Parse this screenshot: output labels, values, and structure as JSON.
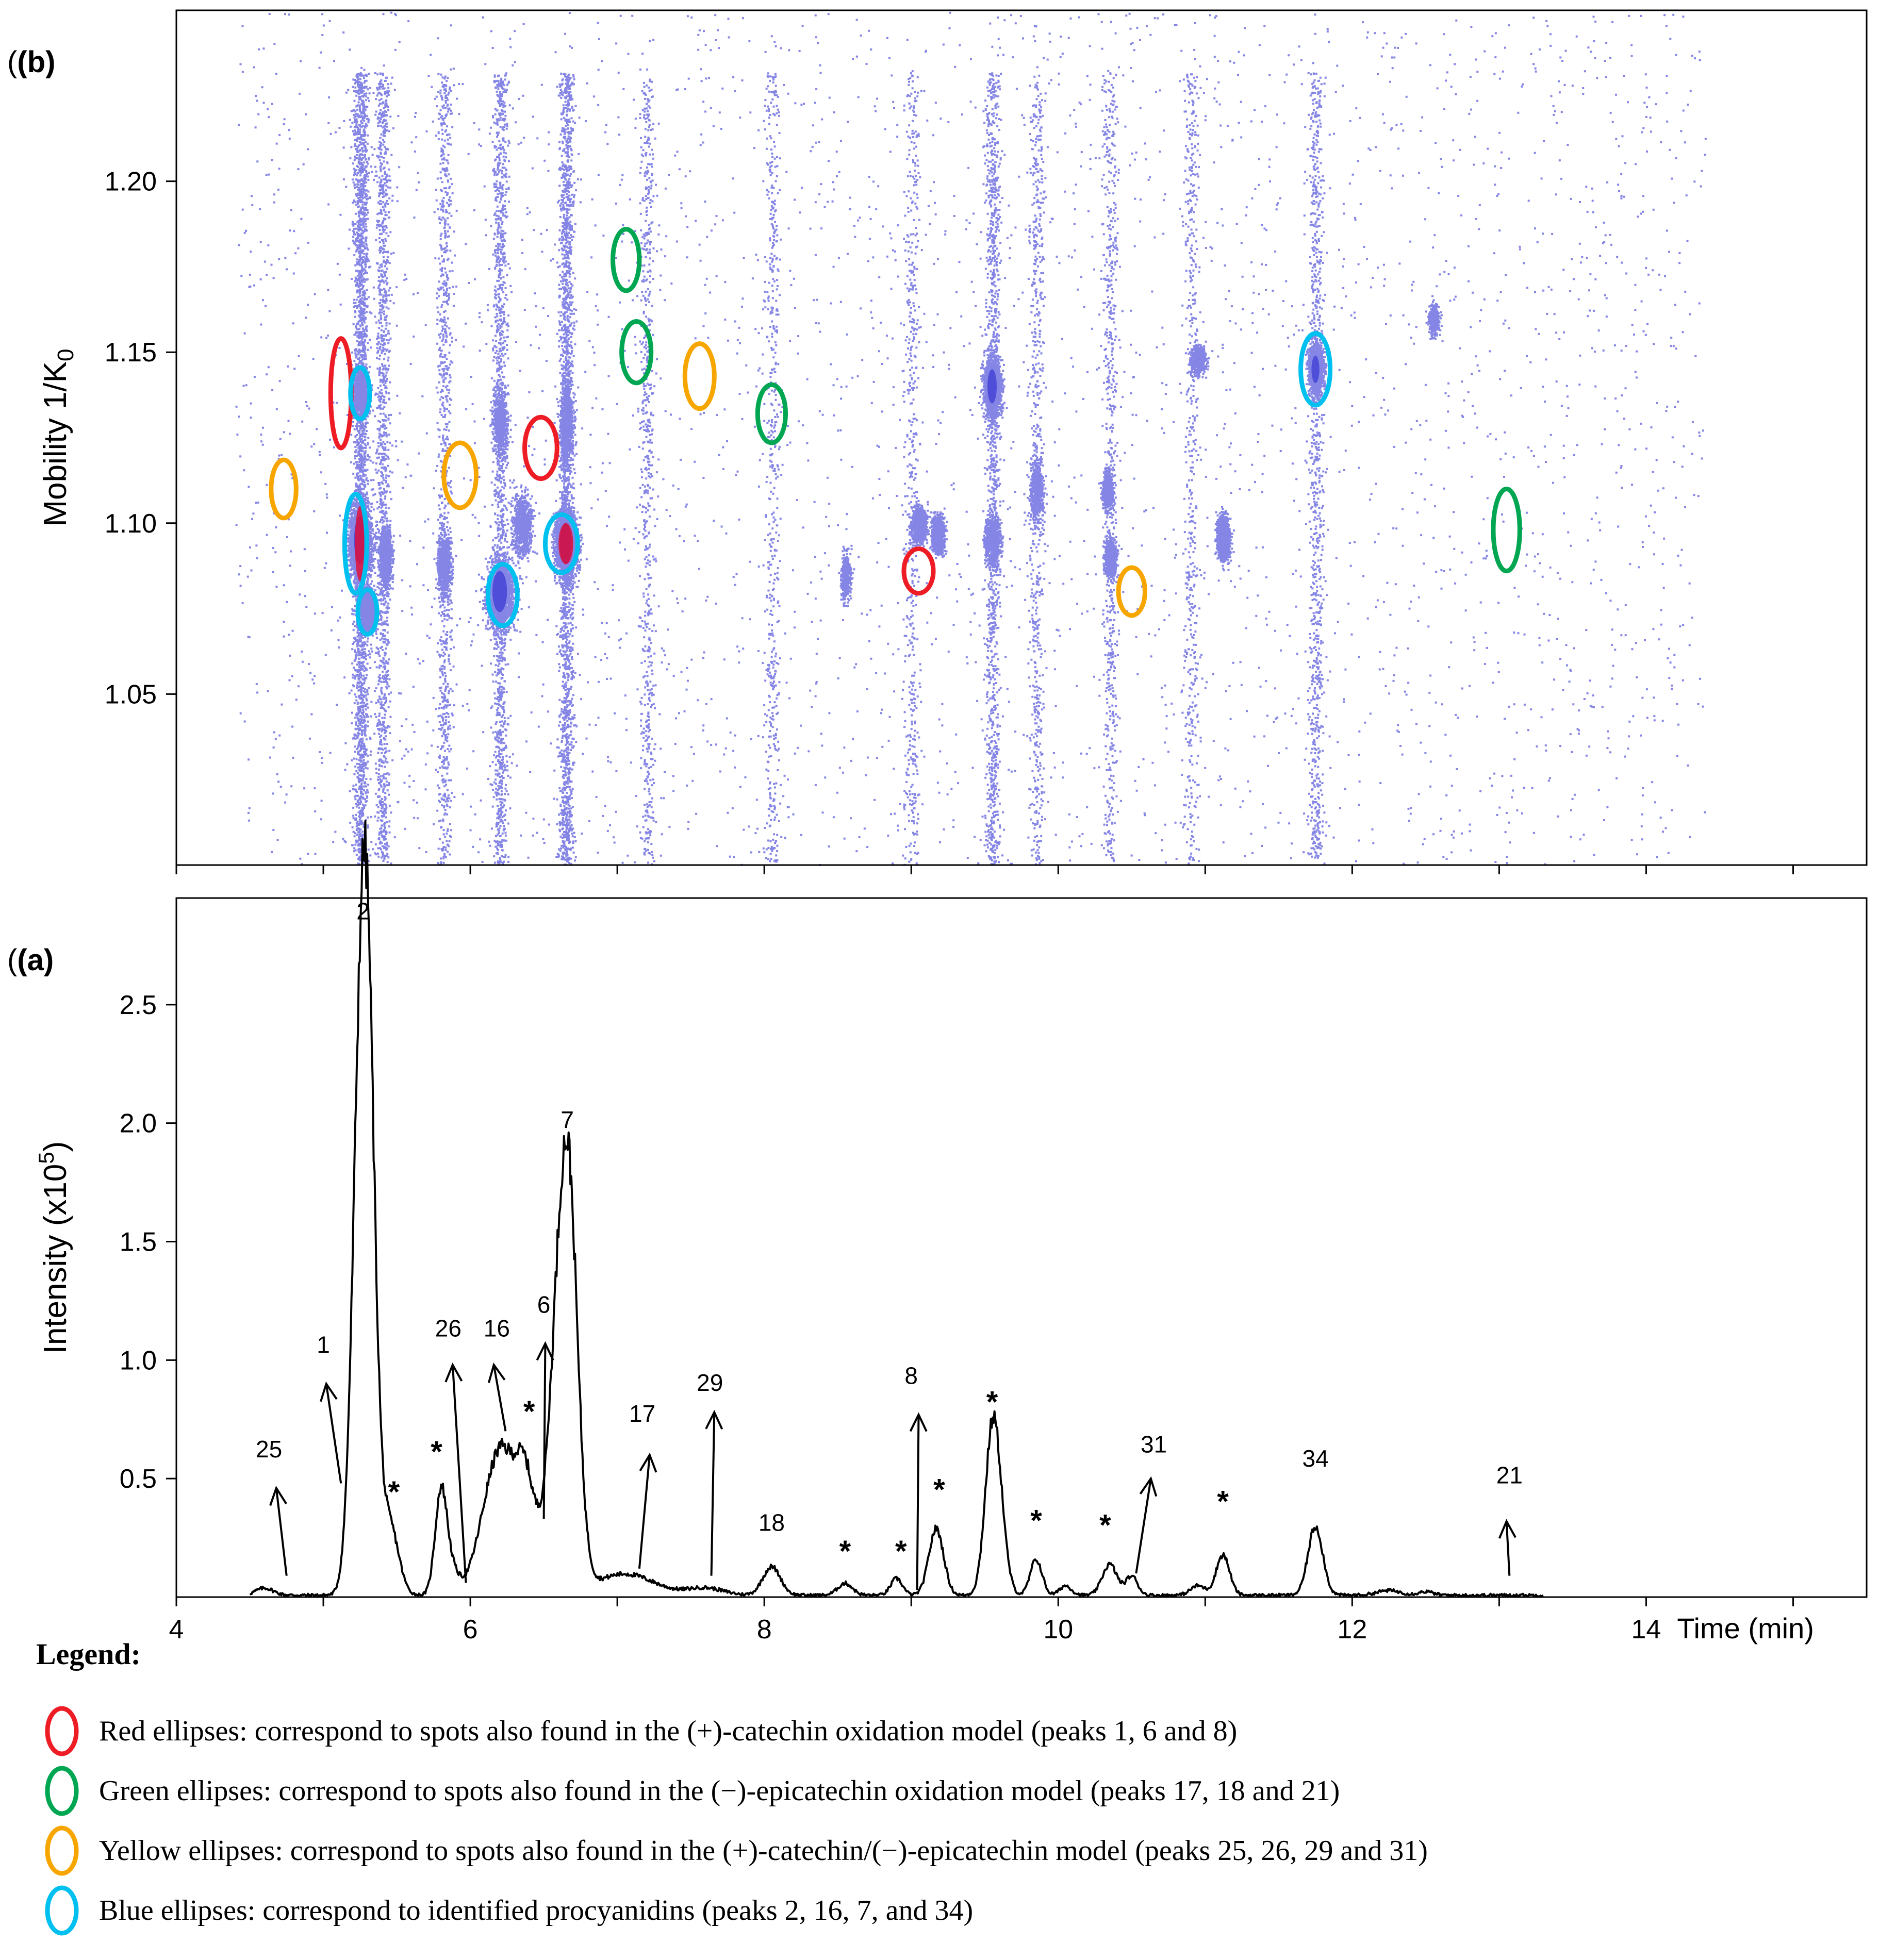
{
  "chart_data": [
    {
      "panel": "(b)",
      "type": "heatmap",
      "ylabel": "Mobility 1/K0",
      "ylabel_main": "Mobility 1/K",
      "ylabel_sub": "0",
      "xlim": [
        4,
        15.5
      ],
      "ylim": [
        1.0,
        1.25
      ],
      "yticks": [
        1.05,
        1.1,
        1.15,
        1.2
      ],
      "ytick_labels": [
        "1.05",
        "1.10",
        "1.15",
        "1.20"
      ],
      "xticks": [
        4,
        6,
        8,
        10,
        12,
        14
      ],
      "spot_color": "#2020d0",
      "hot_color": "#e0103a",
      "intensity_bands": [
        {
          "x": 5.25,
          "weight": 1.0
        },
        {
          "x": 5.4,
          "weight": 0.5
        },
        {
          "x": 5.82,
          "weight": 0.35
        },
        {
          "x": 6.2,
          "weight": 0.55
        },
        {
          "x": 6.65,
          "weight": 0.8
        },
        {
          "x": 7.2,
          "weight": 0.25
        },
        {
          "x": 8.05,
          "weight": 0.2
        },
        {
          "x": 9.0,
          "weight": 0.2
        },
        {
          "x": 9.55,
          "weight": 0.5
        },
        {
          "x": 9.85,
          "weight": 0.25
        },
        {
          "x": 10.35,
          "weight": 0.25
        },
        {
          "x": 10.9,
          "weight": 0.2
        },
        {
          "x": 11.75,
          "weight": 0.35
        }
      ],
      "blobs": [
        {
          "x": 5.25,
          "y": 1.095,
          "sx": 0.09,
          "sy": 0.014,
          "w": 1.0
        },
        {
          "x": 5.3,
          "y": 1.075,
          "sx": 0.06,
          "sy": 0.007,
          "w": 0.5
        },
        {
          "x": 5.25,
          "y": 1.138,
          "sx": 0.06,
          "sy": 0.008,
          "w": 0.45
        },
        {
          "x": 5.42,
          "y": 1.09,
          "sx": 0.05,
          "sy": 0.01,
          "w": 0.4
        },
        {
          "x": 5.82,
          "y": 1.088,
          "sx": 0.05,
          "sy": 0.01,
          "w": 0.45
        },
        {
          "x": 6.2,
          "y": 1.08,
          "sx": 0.11,
          "sy": 0.012,
          "w": 0.75
        },
        {
          "x": 6.35,
          "y": 1.1,
          "sx": 0.08,
          "sy": 0.01,
          "w": 0.4
        },
        {
          "x": 6.2,
          "y": 1.13,
          "sx": 0.06,
          "sy": 0.01,
          "w": 0.3
        },
        {
          "x": 6.65,
          "y": 1.094,
          "sx": 0.09,
          "sy": 0.012,
          "w": 1.0
        },
        {
          "x": 6.65,
          "y": 1.13,
          "sx": 0.05,
          "sy": 0.015,
          "w": 0.4
        },
        {
          "x": 9.05,
          "y": 1.1,
          "sx": 0.06,
          "sy": 0.006,
          "w": 0.35
        },
        {
          "x": 9.18,
          "y": 1.097,
          "sx": 0.05,
          "sy": 0.006,
          "w": 0.45
        },
        {
          "x": 9.55,
          "y": 1.14,
          "sx": 0.07,
          "sy": 0.01,
          "w": 0.7
        },
        {
          "x": 9.55,
          "y": 1.095,
          "sx": 0.06,
          "sy": 0.008,
          "w": 0.45
        },
        {
          "x": 9.85,
          "y": 1.11,
          "sx": 0.05,
          "sy": 0.01,
          "w": 0.3
        },
        {
          "x": 10.33,
          "y": 1.11,
          "sx": 0.04,
          "sy": 0.006,
          "w": 0.35
        },
        {
          "x": 10.35,
          "y": 1.09,
          "sx": 0.05,
          "sy": 0.006,
          "w": 0.3
        },
        {
          "x": 11.12,
          "y": 1.096,
          "sx": 0.05,
          "sy": 0.007,
          "w": 0.55
        },
        {
          "x": 11.75,
          "y": 1.145,
          "sx": 0.06,
          "sy": 0.008,
          "w": 0.7
        },
        {
          "x": 10.95,
          "y": 1.148,
          "sx": 0.06,
          "sy": 0.005,
          "w": 0.25
        },
        {
          "x": 12.55,
          "y": 1.16,
          "sx": 0.04,
          "sy": 0.005,
          "w": 0.2
        },
        {
          "x": 8.55,
          "y": 1.085,
          "sx": 0.04,
          "sy": 0.008,
          "w": 0.2
        }
      ],
      "ellipses": [
        {
          "group": "red",
          "x": 5.12,
          "y": 1.138,
          "rx": 0.07,
          "ry": 0.016
        },
        {
          "group": "red",
          "x": 6.48,
          "y": 1.122,
          "rx": 0.11,
          "ry": 0.009
        },
        {
          "group": "red",
          "x": 9.05,
          "y": 1.086,
          "rx": 0.1,
          "ry": 0.0065
        },
        {
          "group": "green",
          "x": 7.06,
          "y": 1.177,
          "rx": 0.09,
          "ry": 0.009
        },
        {
          "group": "green",
          "x": 7.13,
          "y": 1.15,
          "rx": 0.1,
          "ry": 0.009
        },
        {
          "group": "green",
          "x": 8.05,
          "y": 1.132,
          "rx": 0.095,
          "ry": 0.0085
        },
        {
          "group": "green",
          "x": 13.05,
          "y": 1.098,
          "rx": 0.09,
          "ry": 0.012
        },
        {
          "group": "yellow",
          "x": 4.73,
          "y": 1.11,
          "rx": 0.085,
          "ry": 0.0085
        },
        {
          "group": "yellow",
          "x": 5.93,
          "y": 1.114,
          "rx": 0.11,
          "ry": 0.0095
        },
        {
          "group": "yellow",
          "x": 7.56,
          "y": 1.143,
          "rx": 0.1,
          "ry": 0.0095
        },
        {
          "group": "yellow",
          "x": 10.5,
          "y": 1.08,
          "rx": 0.09,
          "ry": 0.007
        },
        {
          "group": "blue",
          "x": 5.25,
          "y": 1.138,
          "rx": 0.065,
          "ry": 0.0075
        },
        {
          "group": "blue",
          "x": 5.22,
          "y": 1.094,
          "rx": 0.075,
          "ry": 0.0145
        },
        {
          "group": "blue",
          "x": 5.3,
          "y": 1.074,
          "rx": 0.065,
          "ry": 0.0065
        },
        {
          "group": "blue",
          "x": 6.22,
          "y": 1.079,
          "rx": 0.1,
          "ry": 0.009
        },
        {
          "group": "blue",
          "x": 6.62,
          "y": 1.094,
          "rx": 0.11,
          "ry": 0.0085
        },
        {
          "group": "blue",
          "x": 11.75,
          "y": 1.145,
          "rx": 0.1,
          "ry": 0.0105
        }
      ]
    },
    {
      "panel": "(a)",
      "type": "line",
      "xlabel": "Time (min)",
      "ylabel": "Intensity (x10⁵)",
      "ylabel_main": "Intensity (x10",
      "ylabel_sup": "5",
      "ylabel_end": ")",
      "xlim": [
        4,
        15.5
      ],
      "ylim": [
        0,
        2.95
      ],
      "xticks": [
        4,
        6,
        8,
        10,
        12,
        14
      ],
      "xtick_labels": [
        "4",
        "6",
        "8",
        "10",
        "12",
        "14"
      ],
      "yticks": [
        0.5,
        1.0,
        1.5,
        2.0,
        2.5
      ],
      "ytick_labels": [
        "0.5",
        "1.0",
        "1.5",
        "2.0",
        "2.5"
      ],
      "line_color": "#000000",
      "peaks": [
        {
          "x": 4.6,
          "h": 0.03,
          "w": 0.06
        },
        {
          "x": 5.2,
          "h": 0.3,
          "w": 0.05
        },
        {
          "x": 5.27,
          "h": 2.45,
          "w": 0.055
        },
        {
          "x": 5.32,
          "h": 0.9,
          "w": 0.05
        },
        {
          "x": 5.45,
          "h": 0.3,
          "w": 0.06
        },
        {
          "x": 5.8,
          "h": 0.42,
          "w": 0.04
        },
        {
          "x": 5.87,
          "h": 0.1,
          "w": 0.05
        },
        {
          "x": 6.15,
          "h": 0.4,
          "w": 0.1
        },
        {
          "x": 6.25,
          "h": 0.32,
          "w": 0.08
        },
        {
          "x": 6.37,
          "h": 0.4,
          "w": 0.06
        },
        {
          "x": 6.47,
          "h": 0.14,
          "w": 0.07
        },
        {
          "x": 6.62,
          "h": 1.38,
          "w": 0.07
        },
        {
          "x": 6.68,
          "h": 0.6,
          "w": 0.05
        },
        {
          "x": 6.72,
          "h": 0.3,
          "w": 0.06
        },
        {
          "x": 7.05,
          "h": 0.09,
          "w": 0.2
        },
        {
          "x": 7.6,
          "h": 0.03,
          "w": 0.12
        },
        {
          "x": 8.05,
          "h": 0.12,
          "w": 0.06
        },
        {
          "x": 8.55,
          "h": 0.05,
          "w": 0.05
        },
        {
          "x": 8.9,
          "h": 0.07,
          "w": 0.04
        },
        {
          "x": 9.17,
          "h": 0.28,
          "w": 0.05
        },
        {
          "x": 9.55,
          "h": 0.62,
          "w": 0.05
        },
        {
          "x": 9.6,
          "h": 0.2,
          "w": 0.05
        },
        {
          "x": 9.85,
          "h": 0.15,
          "w": 0.04
        },
        {
          "x": 10.05,
          "h": 0.04,
          "w": 0.04
        },
        {
          "x": 10.35,
          "h": 0.13,
          "w": 0.05
        },
        {
          "x": 10.5,
          "h": 0.08,
          "w": 0.04
        },
        {
          "x": 10.95,
          "h": 0.04,
          "w": 0.05
        },
        {
          "x": 11.12,
          "h": 0.17,
          "w": 0.045
        },
        {
          "x": 11.75,
          "h": 0.29,
          "w": 0.05
        },
        {
          "x": 12.25,
          "h": 0.02,
          "w": 0.08
        },
        {
          "x": 12.5,
          "h": 0.015,
          "w": 0.05
        }
      ],
      "peak_labels": [
        {
          "text": "2",
          "x": 5.27,
          "y": 2.86
        },
        {
          "text": "7",
          "x": 6.66,
          "y": 1.98
        },
        {
          "text": "1",
          "x": 5.0,
          "y": 1.03
        },
        {
          "text": "26",
          "x": 5.85,
          "y": 1.1
        },
        {
          "text": "16",
          "x": 6.18,
          "y": 1.1
        },
        {
          "text": "6",
          "x": 6.5,
          "y": 1.2
        },
        {
          "text": "8",
          "x": 9.0,
          "y": 0.9
        },
        {
          "text": "29",
          "x": 7.63,
          "y": 0.87
        },
        {
          "text": "17",
          "x": 7.17,
          "y": 0.74
        },
        {
          "text": "25",
          "x": 4.63,
          "y": 0.59
        },
        {
          "text": "18",
          "x": 8.05,
          "y": 0.28
        },
        {
          "text": "31",
          "x": 10.65,
          "y": 0.61
        },
        {
          "text": "34",
          "x": 11.75,
          "y": 0.55
        },
        {
          "text": "21",
          "x": 13.07,
          "y": 0.48
        }
      ],
      "star_labels": [
        {
          "text": "*",
          "x": 5.48,
          "y": 0.4
        },
        {
          "text": "*",
          "x": 5.77,
          "y": 0.57
        },
        {
          "text": "*",
          "x": 6.4,
          "y": 0.74
        },
        {
          "text": "*",
          "x": 8.55,
          "y": 0.15
        },
        {
          "text": "*",
          "x": 8.93,
          "y": 0.15
        },
        {
          "text": "*",
          "x": 9.19,
          "y": 0.41
        },
        {
          "text": "*",
          "x": 9.55,
          "y": 0.78
        },
        {
          "text": "*",
          "x": 9.85,
          "y": 0.28
        },
        {
          "text": "*",
          "x": 10.32,
          "y": 0.26
        },
        {
          "text": "*",
          "x": 11.12,
          "y": 0.36
        }
      ],
      "arrows": [
        {
          "from": [
            4.75,
            0.09
          ],
          "to": [
            4.68,
            0.46
          ]
        },
        {
          "from": [
            5.12,
            0.48
          ],
          "to": [
            5.02,
            0.9
          ]
        },
        {
          "from": [
            5.97,
            0.06
          ],
          "to": [
            5.88,
            0.98
          ]
        },
        {
          "from": [
            6.24,
            0.7
          ],
          "to": [
            6.16,
            0.98
          ]
        },
        {
          "from": [
            6.5,
            0.33
          ],
          "to": [
            6.51,
            1.07
          ]
        },
        {
          "from": [
            7.15,
            0.12
          ],
          "to": [
            7.22,
            0.6
          ]
        },
        {
          "from": [
            7.64,
            0.09
          ],
          "to": [
            7.66,
            0.78
          ]
        },
        {
          "from": [
            9.04,
            0.03
          ],
          "to": [
            9.05,
            0.77
          ]
        },
        {
          "from": [
            10.53,
            0.1
          ],
          "to": [
            10.63,
            0.5
          ]
        },
        {
          "from": [
            13.07,
            0.09
          ],
          "to": [
            13.05,
            0.32
          ]
        }
      ]
    }
  ],
  "legend": {
    "title": "Legend:",
    "items": [
      {
        "color": "#ee1c25",
        "text": "Red ellipses: correspond to spots also found in the (+)-catechin oxidation model (peaks 1, 6 and 8)"
      },
      {
        "color": "#00a651",
        "text": "Green ellipses: correspond to spots also found in the (−)-epicatechin oxidation model (peaks 17, 18 and 21)"
      },
      {
        "color": "#f7a600",
        "text": "Yellow ellipses: correspond to spots also found in the (+)-catechin/(−)-epicatechin model (peaks 25, 26, 29 and 31)"
      },
      {
        "color": "#00c0f0",
        "text": "Blue ellipses: correspond to identified procyanidins (peaks 2, 16, 7, and 34)"
      }
    ]
  },
  "group_colors": {
    "red": "#ee1c25",
    "green": "#00a651",
    "yellow": "#f7a600",
    "blue": "#00c0f0"
  }
}
